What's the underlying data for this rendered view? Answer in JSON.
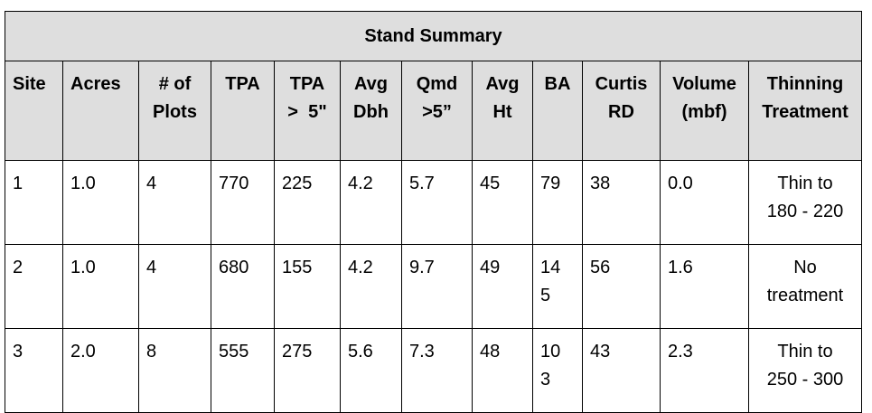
{
  "table": {
    "title": "Stand Summary",
    "headers": [
      {
        "line1": "Site",
        "line2": ""
      },
      {
        "line1": "Acres",
        "line2": ""
      },
      {
        "line1": "# of",
        "line2": "Plots"
      },
      {
        "line1": "TPA",
        "line2": ""
      },
      {
        "line1": "TPA",
        "line2": ">  5\""
      },
      {
        "line1": "Avg",
        "line2": "Dbh"
      },
      {
        "line1": "Qmd",
        "line2": ">5”"
      },
      {
        "line1": "Avg",
        "line2": "Ht"
      },
      {
        "line1": "BA",
        "line2": ""
      },
      {
        "line1": "Curtis",
        "line2": "RD"
      },
      {
        "line1": "Volume",
        "line2": "(mbf)"
      },
      {
        "line1": "Thinning",
        "line2": "Treatment"
      }
    ],
    "rows": [
      {
        "site": "1",
        "acres": "1.0",
        "plots": "4",
        "tpa": "770",
        "tpa5": "225",
        "avg_dbh": "4.2",
        "qmd5": "5.7",
        "avg_ht": "45",
        "ba_1": "79",
        "ba_2": "",
        "curtis_rd": "38",
        "volume": "0.0",
        "treatment_1": "Thin to",
        "treatment_2": "180 - 220"
      },
      {
        "site": "2",
        "acres": "1.0",
        "plots": "4",
        "tpa": "680",
        "tpa5": "155",
        "avg_dbh": "4.2",
        "qmd5": "9.7",
        "avg_ht": "49",
        "ba_1": "14",
        "ba_2": "5",
        "curtis_rd": "56",
        "volume": "1.6",
        "treatment_1": "No",
        "treatment_2": "treatment"
      },
      {
        "site": "3",
        "acres": "2.0",
        "plots": "8",
        "tpa": "555",
        "tpa5": "275",
        "avg_dbh": "5.6",
        "qmd5": "7.3",
        "avg_ht": "48",
        "ba_1": "10",
        "ba_2": "3",
        "curtis_rd": "43",
        "volume": "2.3",
        "treatment_1": "Thin to",
        "treatment_2": "250 - 300"
      }
    ]
  }
}
